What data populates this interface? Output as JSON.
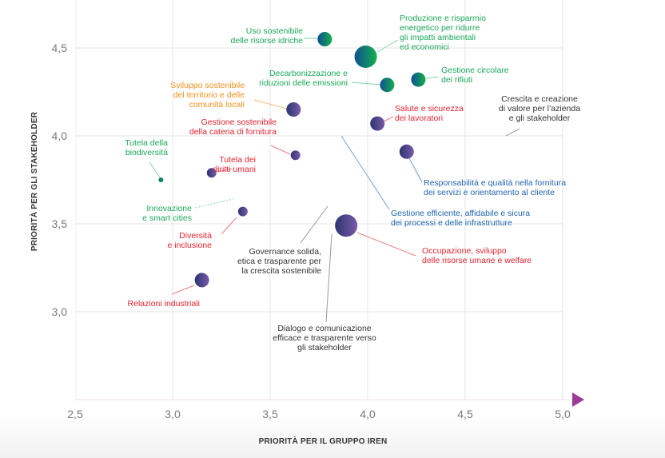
{
  "colors": {
    "green": "#1aa858",
    "orange": "#f39020",
    "red": "#e8232f",
    "blue": "#1f64b0",
    "dark": "#333333",
    "teal": "#0f7f6a",
    "purple_start": "#2c3572",
    "purple_end": "#7a5aa8",
    "green_bubble_start": "#0f4e96",
    "green_bubble_end": "#14b04a",
    "grid": "#e4e4e4",
    "arrow": "#9a3d96"
  },
  "chart_data": {
    "type": "scatter",
    "title": "",
    "xlabel": "PRIORITÀ PER IL GRUPPO IREN",
    "ylabel": "PRIORITÀ PER GLI STAKEHOLDER",
    "xlim": [
      2.5,
      5.0
    ],
    "ylim": [
      2.5,
      4.75
    ],
    "xticks": [
      "2,5",
      "3,0",
      "3,5",
      "4,0",
      "4,5",
      "5,0"
    ],
    "yticks": [
      "3,0",
      "3,5",
      "4,0",
      "4,5"
    ],
    "xtick_values": [
      2.5,
      3.0,
      3.5,
      4.0,
      4.5,
      5.0
    ],
    "ytick_values": [
      3.0,
      3.5,
      4.0,
      4.5
    ],
    "grid": true,
    "points": [
      {
        "label": [
          "Uso sostenibile",
          "delle risorse idriche"
        ],
        "x": 3.78,
        "y": 4.55,
        "size": "medium",
        "group": "environment",
        "color": "green"
      },
      {
        "label": [
          "Produzione e risparmio",
          "energetico per ridurre",
          "gli impatti ambientali",
          "ed economici"
        ],
        "x": 3.99,
        "y": 4.45,
        "size": "large",
        "group": "environment",
        "color": "green"
      },
      {
        "label": [
          "Decarbonizzazione e",
          "riduzioni delle emissioni"
        ],
        "x": 4.1,
        "y": 4.29,
        "size": "medium",
        "group": "environment",
        "color": "green"
      },
      {
        "label": [
          "Gestione circolare",
          "dei rifiuti"
        ],
        "x": 4.26,
        "y": 4.32,
        "size": "medium",
        "group": "environment",
        "color": "green"
      },
      {
        "label": [
          "Sviluppo sostenibile",
          "del territorio e delle",
          "comunità locali"
        ],
        "x": 3.62,
        "y": 4.15,
        "size": "medium",
        "group": "social",
        "color": "orange"
      },
      {
        "label": [
          "Salute e sicurezza",
          "dei lavoratori"
        ],
        "x": 4.05,
        "y": 4.07,
        "size": "medium",
        "group": "social",
        "color": "red"
      },
      {
        "label": [
          "Gestione sostenibile",
          "della catena di fornitura"
        ],
        "x": 3.63,
        "y": 3.89,
        "size": "small",
        "group": "social",
        "color": "red"
      },
      {
        "label": [
          "Responsabilità e qualità nella fornitura",
          "dei servizi e orientamento al cliente"
        ],
        "x": 4.2,
        "y": 3.91,
        "size": "medium",
        "group": "social",
        "color": "blue"
      },
      {
        "label": [
          "Tutela dei",
          "diritti umani"
        ],
        "x": 3.2,
        "y": 3.79,
        "size": "small",
        "group": "social",
        "color": "red"
      },
      {
        "label": [
          "Tutela della",
          "biodiversità"
        ],
        "x": 2.94,
        "y": 3.75,
        "size": "tiny",
        "group": "environment",
        "color": "green"
      },
      {
        "label": [
          "Diversità",
          "e inclusione"
        ],
        "x": 3.36,
        "y": 3.57,
        "size": "small",
        "group": "social",
        "color": "red"
      },
      {
        "label": [
          "Occupazione, sviluppo",
          "delle risorse umane e welfare"
        ],
        "x": 3.89,
        "y": 3.49,
        "size": "large",
        "group": "social",
        "color": "red"
      },
      {
        "label": [
          "Relazioni industriali"
        ],
        "x": 3.15,
        "y": 3.18,
        "size": "medium",
        "group": "social",
        "color": "red"
      }
    ],
    "annotations_without_bubble": [
      {
        "label": [
          "Crescita e creazione",
          "di valore per l’azienda",
          "e gli stakeholder"
        ],
        "color": "dark"
      },
      {
        "label": [
          "Gestione efficiente, affidabile e sicura",
          "dei processi e delle infrastrutture"
        ],
        "color": "blue"
      },
      {
        "label": [
          "Innovazione",
          "e smart cities"
        ],
        "color": "green"
      },
      {
        "label": [
          "Governance solida,",
          "etica e trasparente per",
          "la crescita sostenibile"
        ],
        "color": "dark"
      },
      {
        "label": [
          "Dialogo e comunicazione",
          "efficace e trasparente verso",
          "gli stakeholder"
        ],
        "color": "dark"
      }
    ]
  }
}
